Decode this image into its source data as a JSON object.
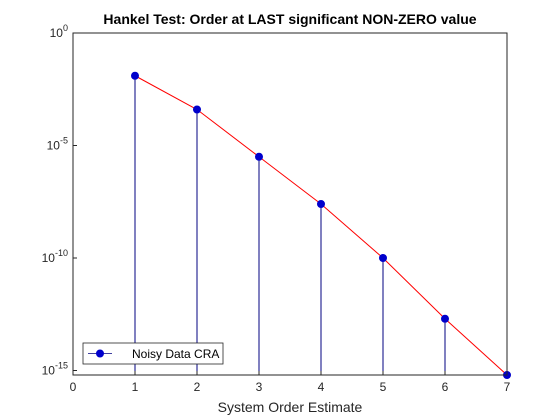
{
  "chart_data": {
    "type": "stem-line",
    "title": "Hankel Test: Order at LAST significant NON-ZERO value",
    "xlabel": "System Order Estimate",
    "ylabel": "",
    "xlim": [
      0,
      7
    ],
    "ylim_log10": [
      -15.2,
      0
    ],
    "yscale": "log",
    "x_ticks": [
      "0",
      "1",
      "2",
      "3",
      "4",
      "5",
      "6",
      "7"
    ],
    "y_ticks": [
      {
        "base": "10",
        "exp": "0"
      },
      {
        "base": "10",
        "exp": "-5"
      },
      {
        "base": "10",
        "exp": "-10"
      },
      {
        "base": "10",
        "exp": "-15"
      }
    ],
    "legend_position": "bottom-left",
    "series": [
      {
        "name": "Noisy Data CRA",
        "marker_color": "#0000cc",
        "stem_color": "#000080",
        "line_color": "#ff0000",
        "x": [
          1,
          2,
          3,
          4,
          5,
          6,
          7
        ],
        "log10_y": [
          -1.9,
          -3.4,
          -5.5,
          -7.6,
          -10.0,
          -12.7,
          -15.25
        ]
      }
    ]
  }
}
